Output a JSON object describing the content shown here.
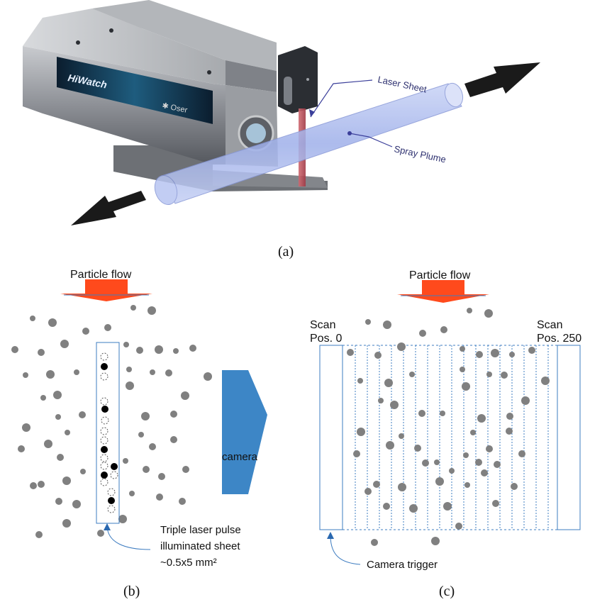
{
  "panel_a": {
    "caption": "(a)",
    "brand_label": "HiWatch",
    "status_label": "✱ Oser",
    "laser_sheet_label": "Laser Sheet",
    "spray_plume_label": "Spray Plume",
    "colors": {
      "device_body": "#8d9096",
      "device_dark": "#2b2e33",
      "plume": "#a9b8ee",
      "laser": "#c0505a",
      "arrow": "#1a1a1a",
      "annotation": "#3b3f9a"
    }
  },
  "panel_b": {
    "caption": "(b)",
    "flow_label": "Particle flow",
    "camera_label": "camera",
    "sheet_caption_line1": "Triple laser pulse",
    "sheet_caption_line2": "illuminated sheet",
    "sheet_caption_line3": "~0.5x5 mm²",
    "colors": {
      "flow_arrow": "#ff4a1c",
      "camera": "#3d86c6",
      "particle": "#808080",
      "sheet_border": "#3d7cc0"
    }
  },
  "panel_c": {
    "caption": "(c)",
    "flow_label": "Particle flow",
    "scan_start_line1": "Scan",
    "scan_start_line2": "Pos. 0",
    "scan_end_line1": "Scan",
    "scan_end_line2": "Pos. 250",
    "trigger_label": "Camera trigger",
    "colors": {
      "flow_arrow": "#ff4a1c",
      "grid": "#3d7cc0",
      "particle": "#808080"
    }
  }
}
